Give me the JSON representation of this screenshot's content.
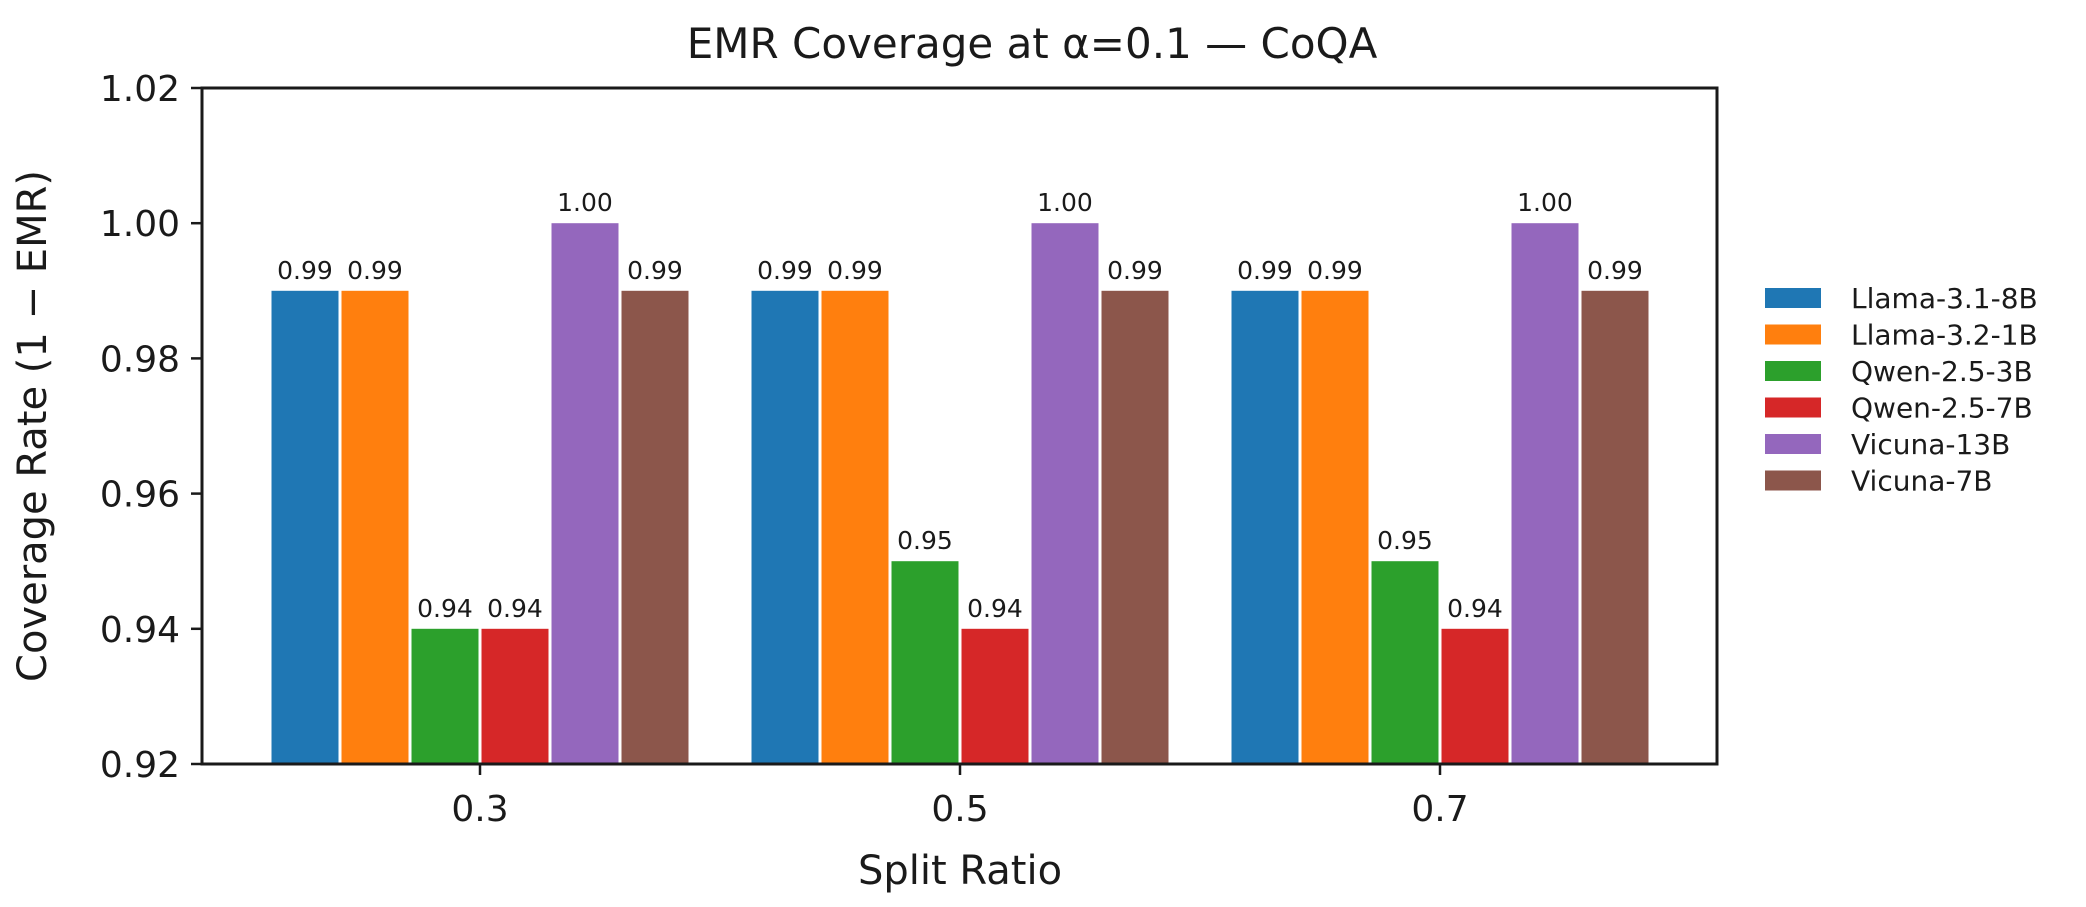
{
  "chart_data": {
    "type": "bar",
    "title": "EMR Coverage at α=0.1 — CoQA",
    "xlabel": "Split Ratio",
    "ylabel": "Coverage Rate (1 − EMR)",
    "ylim": [
      0.92,
      1.02
    ],
    "yticks": [
      0.92,
      0.94,
      0.96,
      0.98,
      1.0,
      1.02
    ],
    "ytick_labels": [
      "0.92",
      "0.94",
      "0.96",
      "0.98",
      "1.00",
      "1.02"
    ],
    "categories": [
      "0.3",
      "0.5",
      "0.7"
    ],
    "grid": false,
    "legend_position": "outside right",
    "series": [
      {
        "name": "Llama-3.1-8B",
        "color": "#1f77b4",
        "values": [
          0.99,
          0.99,
          0.99
        ],
        "labels": [
          "0.99",
          "0.99",
          "0.99"
        ]
      },
      {
        "name": "Llama-3.2-1B",
        "color": "#ff7f0e",
        "values": [
          0.99,
          0.99,
          0.99
        ],
        "labels": [
          "0.99",
          "0.99",
          "0.99"
        ]
      },
      {
        "name": "Qwen-2.5-3B",
        "color": "#2ca02c",
        "values": [
          0.94,
          0.95,
          0.95
        ],
        "labels": [
          "0.94",
          "0.95",
          "0.95"
        ]
      },
      {
        "name": "Qwen-2.5-7B",
        "color": "#d62728",
        "values": [
          0.94,
          0.94,
          0.94
        ],
        "labels": [
          "0.94",
          "0.94",
          "0.94"
        ]
      },
      {
        "name": "Vicuna-13B",
        "color": "#9467bd",
        "values": [
          1.0,
          1.0,
          1.0
        ],
        "labels": [
          "1.00",
          "1.00",
          "1.00"
        ]
      },
      {
        "name": "Vicuna-7B",
        "color": "#8c564b",
        "values": [
          0.99,
          0.99,
          0.99
        ],
        "labels": [
          "0.99",
          "0.99",
          "0.99"
        ]
      }
    ]
  }
}
